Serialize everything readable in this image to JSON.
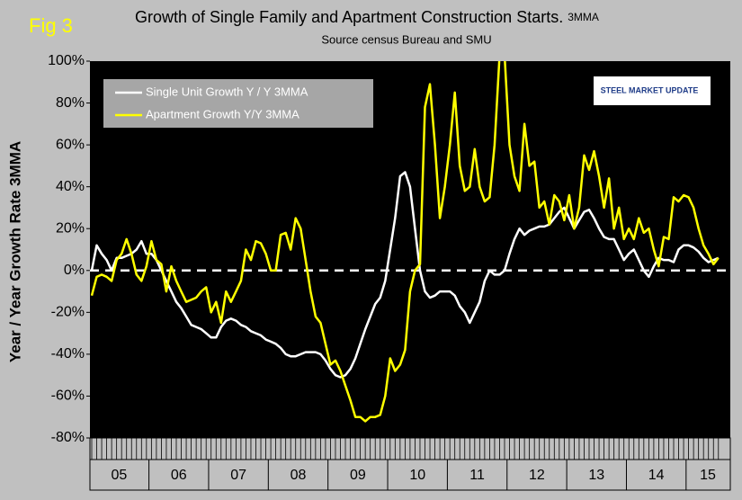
{
  "chart_data": {
    "type": "line",
    "figure_label": "Fig 3",
    "title": "Growth of Single Family and Apartment Construction Starts.",
    "title_note": "3MMA",
    "subtitle": "Source census Bureau and SMU",
    "y_label": "Year / Year Growth Rate 3MMA",
    "logo": "STEEL MARKET UPDATE",
    "categories": [
      "05",
      null,
      null,
      null,
      null,
      null,
      null,
      null,
      null,
      null,
      null,
      null,
      "06",
      null,
      null,
      null,
      null,
      null,
      null,
      null,
      null,
      null,
      null,
      null,
      "07",
      null,
      null,
      null,
      null,
      null,
      null,
      null,
      null,
      null,
      null,
      null,
      "08",
      null,
      null,
      null,
      null,
      null,
      null,
      null,
      null,
      null,
      null,
      null,
      "09",
      null,
      null,
      null,
      null,
      null,
      null,
      null,
      null,
      null,
      null,
      null,
      "10",
      null,
      null,
      null,
      null,
      null,
      null,
      null,
      null,
      null,
      null,
      null,
      "11",
      null,
      null,
      null,
      null,
      null,
      null,
      null,
      null,
      null,
      null,
      null,
      "12",
      null,
      null,
      null,
      null,
      null,
      null,
      null,
      null,
      null,
      null,
      null,
      "13",
      null,
      null,
      null,
      null,
      null,
      null,
      null,
      null,
      null,
      null,
      null,
      "14",
      null,
      null,
      null,
      null,
      null,
      null,
      null,
      null,
      null,
      null,
      null,
      "15",
      null,
      null,
      null,
      null,
      null,
      null
    ],
    "series": [
      {
        "name": "Single Unit Growth Y / Y 3MMA",
        "color": "#ffffff",
        "values": [
          0,
          12,
          8,
          5,
          0,
          6,
          6,
          7,
          8,
          10,
          14,
          8,
          8,
          5,
          0,
          -5,
          -10,
          -15,
          -18,
          -22,
          -26,
          -27,
          -28,
          -30,
          -32,
          -32,
          -27,
          -24,
          -23,
          -24,
          -26,
          -27,
          -29,
          -30,
          -31,
          -33,
          -34,
          -35,
          -37,
          -40,
          -41,
          -41,
          -40,
          -39,
          -39,
          -39,
          -40,
          -43,
          -47,
          -50,
          -51,
          -50,
          -47,
          -42,
          -35,
          -28,
          -22,
          -16,
          -13,
          -5,
          10,
          25,
          45,
          47,
          40,
          20,
          0,
          -10,
          -13,
          -12,
          -10,
          -10,
          -10,
          -12,
          -17,
          -20,
          -25,
          -20,
          -15,
          -5,
          0,
          -2,
          -2,
          0,
          8,
          15,
          20,
          17,
          19,
          20,
          21,
          21,
          22,
          25,
          28,
          30,
          25,
          20,
          24,
          28,
          29,
          25,
          20,
          16,
          15,
          15,
          10,
          5,
          8,
          10,
          5,
          0,
          -3,
          2,
          6,
          5,
          5,
          4,
          10,
          12,
          12,
          11,
          9,
          6,
          4,
          5,
          6
        ]
      },
      {
        "name": "Apartment Growth Y/Y 3MMA",
        "color": "#ffff00",
        "values": [
          -12,
          -3,
          -2,
          -3,
          -5,
          5,
          8,
          15,
          8,
          -2,
          -5,
          2,
          14,
          5,
          3,
          -10,
          2,
          -5,
          -10,
          -15,
          -14,
          -13,
          -10,
          -8,
          -20,
          -15,
          -25,
          -10,
          -15,
          -10,
          -5,
          10,
          5,
          14,
          13,
          8,
          0,
          0,
          17,
          18,
          10,
          25,
          20,
          5,
          -10,
          -22,
          -25,
          -35,
          -45,
          -43,
          -48,
          -55,
          -62,
          -70,
          -70,
          -72,
          -70,
          -70,
          -69,
          -60,
          -42,
          -48,
          -45,
          -38,
          -10,
          0,
          3,
          78,
          89,
          60,
          25,
          40,
          60,
          85,
          50,
          38,
          40,
          58,
          40,
          33,
          35,
          60,
          103,
          103,
          60,
          45,
          38,
          70,
          50,
          52,
          30,
          33,
          22,
          36,
          33,
          24,
          36,
          20,
          30,
          55,
          48,
          57,
          45,
          30,
          44,
          20,
          30,
          15,
          20,
          15,
          25,
          18,
          20,
          10,
          2,
          16,
          15,
          35,
          33,
          36,
          35,
          30,
          20,
          12,
          8,
          3,
          6
        ]
      }
    ],
    "ylim": [
      -80,
      100
    ],
    "yticks": [
      {
        "value": -80,
        "label": "-80%"
      },
      {
        "value": -60,
        "label": "-60%"
      },
      {
        "value": -40,
        "label": "-40%"
      },
      {
        "value": -20,
        "label": "-20%"
      },
      {
        "value": 0,
        "label": "0%"
      },
      {
        "value": 20,
        "label": "20%"
      },
      {
        "value": 40,
        "label": "40%"
      },
      {
        "value": 60,
        "label": "60%"
      },
      {
        "value": 80,
        "label": "80%"
      },
      {
        "value": 100,
        "label": "100%"
      }
    ],
    "zero_line": true,
    "grid": false,
    "legend": "upper left"
  }
}
